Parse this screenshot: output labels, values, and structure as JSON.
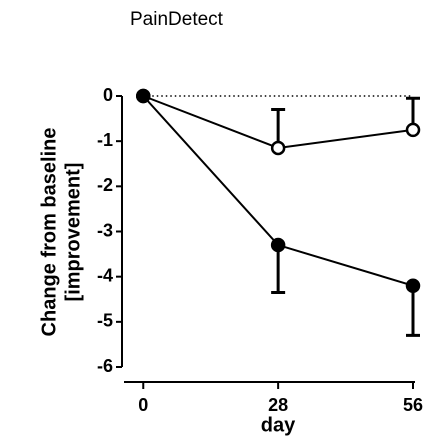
{
  "chart_data": {
    "type": "line",
    "title": "PainDetect",
    "y_label": [
      "Change from baseline",
      "[improvement]"
    ],
    "x_label": "day",
    "x": [
      0,
      28,
      56
    ],
    "series": [
      {
        "color": "#ffffff",
        "values": [
          0,
          -1.15,
          -0.75
        ],
        "errors": [
          null,
          0.85,
          0.7
        ],
        "error_direction": "up"
      },
      {
        "color": "#000000",
        "values": [
          0,
          -3.3,
          -4.2
        ],
        "errors": [
          null,
          1.05,
          1.1
        ],
        "error_direction": "down"
      }
    ],
    "reference_line": 0,
    "xlim": [
      -4,
      56
    ],
    "xticks": [
      0,
      28,
      56
    ],
    "ylim": [
      -6,
      0
    ],
    "yticks": [
      0,
      -1,
      -2,
      -3,
      -4,
      -5,
      -6
    ]
  }
}
